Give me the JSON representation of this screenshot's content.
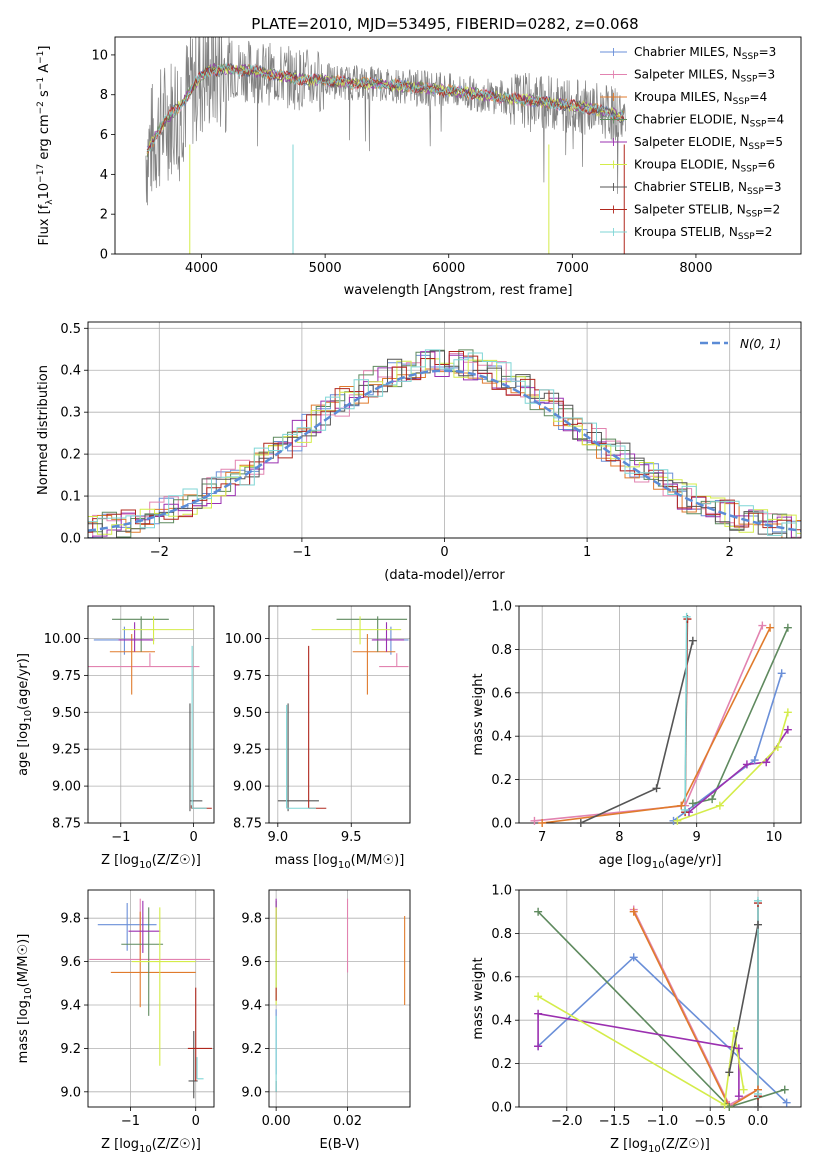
{
  "title": "PLATE=2010, MJD=53495, FIBERID=0282, z=0.068",
  "colors": {
    "chabrier_miles": "#6a8fd8",
    "salpeter_miles": "#e283b0",
    "kroupa_miles": "#e07b2d",
    "chabrier_elodie": "#5f8a5f",
    "salpeter_elodie": "#9b30b0",
    "kroupa_elodie": "#d4ec4a",
    "chabrier_stelib": "#555555",
    "salpeter_stelib": "#b0281e",
    "kroupa_stelib": "#7fd6d6",
    "data": "#808080",
    "normal": "#5b8bd6"
  },
  "chart_data": [
    {
      "id": "spectrum",
      "type": "line",
      "xlabel": "wavelength [Angstrom, rest frame]",
      "ylabel": "Flux [f_λ 10^-17 erg cm^-2 s^-1 A^-1]",
      "xlim": [
        3300,
        8850
      ],
      "ylim": [
        0,
        10.9
      ],
      "xticks": [
        "4000",
        "5000",
        "6000",
        "7000",
        "8000"
      ],
      "yticks": [
        "0",
        "2",
        "4",
        "6",
        "8",
        "10"
      ],
      "legend_loc": "right",
      "legend": [
        {
          "pre": "Chabrier MILES, N",
          "sub": "SSP",
          "post": "=3",
          "color_key": "chabrier_miles"
        },
        {
          "pre": "Salpeter MILES, N",
          "sub": "SSP",
          "post": "=3",
          "color_key": "salpeter_miles"
        },
        {
          "pre": "Kroupa MILES, N",
          "sub": "SSP",
          "post": "=4",
          "color_key": "kroupa_miles"
        },
        {
          "pre": "Chabrier ELODIE, N",
          "sub": "SSP",
          "post": "=4",
          "color_key": "chabrier_elodie"
        },
        {
          "pre": "Salpeter ELODIE, N",
          "sub": "SSP",
          "post": "=5",
          "color_key": "salpeter_elodie"
        },
        {
          "pre": "Kroupa ELODIE, N",
          "sub": "SSP",
          "post": "=6",
          "color_key": "kroupa_elodie"
        },
        {
          "pre": "Chabrier STELIB, N",
          "sub": "SSP",
          "post": "=3",
          "color_key": "chabrier_stelib"
        },
        {
          "pre": "Salpeter STELIB, N",
          "sub": "SSP",
          "post": "=2",
          "color_key": "salpeter_stelib"
        },
        {
          "pre": "Kroupa STELIB, N",
          "sub": "SSP",
          "post": "=2",
          "color_key": "kroupa_stelib"
        }
      ],
      "model_continuum": {
        "x": [
          3550,
          3650,
          3750,
          3850,
          3950,
          4050,
          4200,
          4400,
          4600,
          4800,
          5000,
          5200,
          5400,
          5600,
          5800,
          6000,
          6200,
          6400,
          6600,
          6800,
          7000,
          7200,
          7400
        ],
        "y": [
          5.0,
          6.2,
          7.0,
          7.6,
          8.6,
          9.2,
          9.3,
          9.2,
          9.0,
          8.8,
          8.7,
          8.6,
          8.55,
          8.45,
          8.35,
          8.2,
          8.05,
          7.9,
          7.75,
          7.6,
          7.45,
          7.25,
          6.9
        ]
      }
    },
    {
      "id": "residuals",
      "type": "line",
      "xlabel": "(data-model)/error",
      "ylabel": "Normed distribution",
      "xlim": [
        -2.5,
        2.5
      ],
      "ylim": [
        0,
        0.515
      ],
      "xticks": [
        "−2",
        "−1",
        "0",
        "1",
        "2"
      ],
      "yticks": [
        "0.0",
        "0.1",
        "0.2",
        "0.3",
        "0.4",
        "0.5"
      ],
      "grid": true,
      "legend_loc": "upper right",
      "legend_label": "N(0, 1)",
      "normal": {
        "mean": 0,
        "sigma": 1
      }
    },
    {
      "id": "age_vs_Z",
      "type": "scatter",
      "xlabel_pre": "Z [log",
      "xlabel_sub": "10",
      "xlabel_post": "(Z/Z☉)]",
      "ylabel_pre": "age  [log",
      "ylabel_sub": "10",
      "ylabel_post": "(age/yr)]",
      "xlim": [
        -1.45,
        0.28
      ],
      "ylim": [
        8.75,
        10.22
      ],
      "xticks": [
        "−1",
        "0"
      ],
      "yticks": [
        "8.75",
        "9.00",
        "9.25",
        "9.50",
        "9.75",
        "10.00"
      ],
      "grid": true,
      "errorbars": [
        {
          "key": "chabrier_miles",
          "x": -0.95,
          "y": 9.99,
          "xerr": [
            0.42,
            0.35
          ],
          "yerr": [
            0.1,
            0.09
          ]
        },
        {
          "key": "salpeter_miles",
          "x": -0.6,
          "y": 9.81,
          "xerr": [
            0.88,
            0.68
          ],
          "yerr": [
            0.0,
            0.09
          ]
        },
        {
          "key": "kroupa_miles",
          "x": -0.85,
          "y": 9.91,
          "xerr": [
            0.3,
            0.32
          ],
          "yerr": [
            0.29,
            0.12
          ]
        },
        {
          "key": "chabrier_elodie",
          "x": -0.72,
          "y": 10.13,
          "xerr": [
            0.4,
            0.38
          ],
          "yerr": [
            0.22,
            0.02
          ]
        },
        {
          "key": "salpeter_elodie",
          "x": -0.81,
          "y": 9.99,
          "xerr": [
            0.22,
            0.27
          ],
          "yerr": [
            0.08,
            0.12
          ]
        },
        {
          "key": "kroupa_elodie",
          "x": -0.55,
          "y": 10.06,
          "xerr": [
            0.43,
            0.55
          ],
          "yerr": [
            0.1,
            0.09
          ]
        },
        {
          "key": "chabrier_stelib",
          "x": -0.05,
          "y": 8.9,
          "xerr": [
            0.0,
            0.17
          ],
          "yerr": [
            0.07,
            0.66
          ]
        },
        {
          "key": "salpeter_stelib",
          "x": -0.03,
          "y": 8.85,
          "xerr": [
            0.0,
            0.28
          ],
          "yerr": [
            0.0,
            0.02
          ]
        },
        {
          "key": "kroupa_stelib",
          "x": -0.02,
          "y": 8.85,
          "xerr": [
            0.0,
            0.2
          ],
          "yerr": [
            0.0,
            1.1
          ]
        }
      ]
    },
    {
      "id": "age_vs_mass",
      "type": "scatter",
      "xlabel_pre": "mass [log",
      "xlabel_sub": "10",
      "xlabel_post": "(M/M☉)]",
      "xlim": [
        8.94,
        9.9
      ],
      "ylim": [
        8.75,
        10.22
      ],
      "xticks": [
        "9.0",
        "9.5"
      ],
      "yticks": [
        "8.75",
        "9.00",
        "9.25",
        "9.50",
        "9.75",
        "10.00"
      ],
      "grid": true,
      "errorbars": [
        {
          "key": "chabrier_miles",
          "x": 9.77,
          "y": 9.99,
          "xerr": [
            0.12,
            0.12
          ],
          "yerr": [
            0.1,
            0.09
          ]
        },
        {
          "key": "salpeter_miles",
          "x": 9.81,
          "y": 9.81,
          "xerr": [
            0.12,
            0.08
          ],
          "yerr": [
            0.0,
            0.09
          ]
        },
        {
          "key": "kroupa_miles",
          "x": 9.61,
          "y": 9.91,
          "xerr": [
            0.1,
            0.19
          ],
          "yerr": [
            0.29,
            0.12
          ]
        },
        {
          "key": "chabrier_elodie",
          "x": 9.68,
          "y": 10.13,
          "xerr": [
            0.28,
            0.2
          ],
          "yerr": [
            0.22,
            0.02
          ]
        },
        {
          "key": "salpeter_elodie",
          "x": 9.74,
          "y": 9.99,
          "xerr": [
            0.1,
            0.12
          ],
          "yerr": [
            0.08,
            0.12
          ]
        },
        {
          "key": "kroupa_elodie",
          "x": 9.56,
          "y": 10.06,
          "xerr": [
            0.33,
            0.28
          ],
          "yerr": [
            0.1,
            0.09
          ]
        },
        {
          "key": "chabrier_stelib",
          "x": 9.07,
          "y": 8.9,
          "xerr": [
            0.07,
            0.21
          ],
          "yerr": [
            0.07,
            0.66
          ]
        },
        {
          "key": "salpeter_stelib",
          "x": 9.21,
          "y": 8.85,
          "xerr": [
            0.0,
            0.12
          ],
          "yerr": [
            0.0,
            1.1
          ]
        },
        {
          "key": "kroupa_stelib",
          "x": 9.06,
          "y": 8.85,
          "xerr": [
            0.0,
            0.2
          ],
          "yerr": [
            0.0,
            0.7
          ]
        }
      ]
    },
    {
      "id": "weight_vs_age",
      "type": "line",
      "xlabel_pre": "age  [log",
      "xlabel_sub": "10",
      "xlabel_post": "(age/yr)]",
      "ylabel": "mass weight",
      "xlim": [
        6.7,
        10.35
      ],
      "ylim": [
        0,
        1.0
      ],
      "xticks": [
        "7",
        "8",
        "9",
        "10"
      ],
      "yticks": [
        "0.0",
        "0.2",
        "0.4",
        "0.6",
        "0.8",
        "1.0"
      ],
      "grid": true,
      "series": [
        {
          "key": "chabrier_miles",
          "x": [
            8.7,
            9.75,
            10.1
          ],
          "y": [
            0.01,
            0.29,
            0.69
          ]
        },
        {
          "key": "salpeter_miles",
          "x": [
            6.9,
            8.85,
            9.85
          ],
          "y": [
            0.01,
            0.08,
            0.91
          ]
        },
        {
          "key": "kroupa_miles",
          "x": [
            7.0,
            8.8,
            9.95
          ],
          "y": [
            0.0,
            0.08,
            0.9
          ]
        },
        {
          "key": "chabrier_elodie",
          "x": [
            8.95,
            9.2,
            10.18
          ],
          "y": [
            0.09,
            0.11,
            0.9
          ]
        },
        {
          "key": "salpeter_elodie",
          "x": [
            8.9,
            9.65,
            9.9,
            10.18
          ],
          "y": [
            0.05,
            0.27,
            0.28,
            0.43
          ]
        },
        {
          "key": "kroupa_elodie",
          "x": [
            8.75,
            9.3,
            10.05,
            10.18
          ],
          "y": [
            0.01,
            0.08,
            0.35,
            0.51
          ]
        },
        {
          "key": "chabrier_stelib",
          "x": [
            7.5,
            8.48,
            8.95
          ],
          "y": [
            0.0,
            0.16,
            0.84
          ]
        },
        {
          "key": "salpeter_stelib",
          "x": [
            8.85,
            8.88
          ],
          "y": [
            0.05,
            0.94
          ]
        },
        {
          "key": "kroupa_stelib",
          "x": [
            8.85,
            8.87
          ],
          "y": [
            0.06,
            0.95
          ]
        }
      ]
    },
    {
      "id": "mass_vs_Z",
      "type": "scatter",
      "xlabel_pre": "Z [log",
      "xlabel_sub": "10",
      "xlabel_post": "(Z/Z☉)]",
      "ylabel_pre": "mass [log",
      "ylabel_sub": "10",
      "ylabel_post": "(M/M☉)]",
      "xlim": [
        -1.65,
        0.28
      ],
      "ylim": [
        8.93,
        9.93
      ],
      "xticks": [
        "−1",
        "0"
      ],
      "yticks": [
        "9.0",
        "9.2",
        "9.4",
        "9.6",
        "9.8"
      ],
      "grid": true,
      "errorbars": [
        {
          "key": "chabrier_miles",
          "x": -1.05,
          "y": 9.77,
          "xerr": [
            0.45,
            0.45
          ],
          "yerr": [
            0.12,
            0.1
          ]
        },
        {
          "key": "salpeter_miles",
          "x": -0.85,
          "y": 9.61,
          "xerr": [
            0.78,
            1.07
          ],
          "yerr": [
            0.0,
            0.28
          ]
        },
        {
          "key": "kroupa_miles",
          "x": -0.85,
          "y": 9.55,
          "xerr": [
            0.45,
            0.85
          ],
          "yerr": [
            0.16,
            0.28
          ]
        },
        {
          "key": "chabrier_elodie",
          "x": -0.72,
          "y": 9.68,
          "xerr": [
            0.42,
            0.22
          ],
          "yerr": [
            0.33,
            0.17
          ]
        },
        {
          "key": "salpeter_elodie",
          "x": -0.81,
          "y": 9.74,
          "xerr": [
            0.22,
            0.27
          ],
          "yerr": [
            0.1,
            0.14
          ]
        },
        {
          "key": "kroupa_elodie",
          "x": -0.55,
          "y": 9.6,
          "xerr": [
            0.43,
            0.55
          ],
          "yerr": [
            0.48,
            0.25
          ]
        },
        {
          "key": "chabrier_stelib",
          "x": -0.03,
          "y": 9.05,
          "xerr": [
            0.08,
            0.06
          ],
          "yerr": [
            0.08,
            0.23
          ]
        },
        {
          "key": "salpeter_stelib",
          "x": 0.0,
          "y": 9.2,
          "xerr": [
            0.12,
            0.25
          ],
          "yerr": [
            0.15,
            0.28
          ]
        },
        {
          "key": "kroupa_stelib",
          "x": 0.02,
          "y": 9.06,
          "xerr": [
            0.0,
            0.1
          ],
          "yerr": [
            0.0,
            0.1
          ]
        }
      ]
    },
    {
      "id": "mass_vs_ebv",
      "type": "scatter",
      "xlabel": "E(B-V)",
      "xlim": [
        -0.002,
        0.0375
      ],
      "ylim": [
        8.93,
        9.93
      ],
      "xticks": [
        "0.00",
        "0.02"
      ],
      "yticks": [
        "9.0",
        "9.2",
        "9.4",
        "9.6",
        "9.8"
      ],
      "grid": true,
      "errorbars": [
        {
          "key": "chabrier_miles",
          "x": 0.0,
          "y": 9.08,
          "xerr": [
            0,
            0
          ],
          "yerr": [
            0.0,
            0.3
          ]
        },
        {
          "key": "salpeter_miles",
          "x": 0.02,
          "y": 9.72,
          "xerr": [
            0,
            0
          ],
          "yerr": [
            0.17,
            0.17
          ]
        },
        {
          "key": "kroupa_miles",
          "x": 0.036,
          "y": 9.6,
          "xerr": [
            0,
            0
          ],
          "yerr": [
            0.2,
            0.21
          ]
        },
        {
          "key": "chabrier_elodie",
          "x": 0.0,
          "y": 9.68,
          "xerr": [
            0,
            0
          ],
          "yerr": [
            0.2,
            0.2
          ]
        },
        {
          "key": "salpeter_elodie",
          "x": 0.0,
          "y": 9.8,
          "xerr": [
            0,
            0
          ],
          "yerr": [
            0.15,
            0.09
          ]
        },
        {
          "key": "kroupa_elodie",
          "x": 0.0,
          "y": 9.6,
          "xerr": [
            0,
            0
          ],
          "yerr": [
            0.2,
            0.25
          ]
        },
        {
          "key": "chabrier_stelib",
          "x": 0.0,
          "y": 9.0,
          "xerr": [
            0,
            0
          ],
          "yerr": [
            0.0,
            0.05
          ]
        },
        {
          "key": "salpeter_stelib",
          "x": 0.0,
          "y": 9.42,
          "xerr": [
            0,
            0
          ],
          "yerr": [
            0.0,
            0.06
          ]
        },
        {
          "key": "kroupa_stelib",
          "x": 0.0,
          "y": 9.3,
          "xerr": [
            0,
            0
          ],
          "yerr": [
            0.3,
            0.05
          ]
        }
      ]
    },
    {
      "id": "weight_vs_Z",
      "type": "line",
      "xlabel_pre": "Z [log",
      "xlabel_sub": "10",
      "xlabel_post": "(Z/Z☉)]",
      "ylabel": "mass weight",
      "xlim": [
        -2.5,
        0.45
      ],
      "ylim": [
        0,
        1.0
      ],
      "xticks": [
        "−2.0",
        "−1.5",
        "−1.0",
        "−0.5",
        "0.0"
      ],
      "yticks": [
        "0.0",
        "0.2",
        "0.4",
        "0.6",
        "0.8",
        "1.0"
      ],
      "grid": true,
      "series": [
        {
          "key": "chabrier_miles",
          "x": [
            -2.3,
            -1.3,
            0.3
          ],
          "y": [
            0.28,
            0.69,
            0.02
          ]
        },
        {
          "key": "salpeter_miles",
          "x": [
            -1.3,
            -0.3,
            0.0
          ],
          "y": [
            0.91,
            0.01,
            0.08
          ]
        },
        {
          "key": "kroupa_miles",
          "x": [
            -1.3,
            -0.3,
            0.0
          ],
          "y": [
            0.9,
            0.0,
            0.08
          ]
        },
        {
          "key": "chabrier_elodie",
          "x": [
            -2.3,
            -0.3,
            0.28
          ],
          "y": [
            0.9,
            0.0,
            0.08
          ]
        },
        {
          "key": "salpeter_elodie",
          "x": [
            -2.3,
            -2.3,
            -0.2,
            -0.2
          ],
          "y": [
            0.28,
            0.43,
            0.27,
            0.05
          ]
        },
        {
          "key": "kroupa_elodie",
          "x": [
            -2.3,
            -0.35,
            -0.25,
            -0.15
          ],
          "y": [
            0.51,
            0.01,
            0.35,
            0.08
          ]
        },
        {
          "key": "chabrier_stelib",
          "x": [
            -0.3,
            0.0,
            0.0
          ],
          "y": [
            0.16,
            0.84,
            0.0
          ]
        },
        {
          "key": "salpeter_stelib",
          "x": [
            0.0,
            0.0
          ],
          "y": [
            0.05,
            0.94
          ]
        },
        {
          "key": "kroupa_stelib",
          "x": [
            0.0,
            0.0
          ],
          "y": [
            0.06,
            0.95
          ]
        }
      ]
    }
  ]
}
